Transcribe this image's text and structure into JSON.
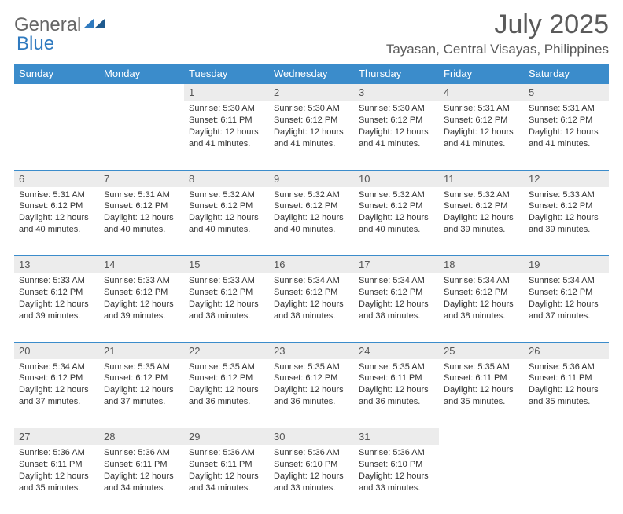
{
  "logo": {
    "text1": "General",
    "text2": "Blue"
  },
  "title": "July 2025",
  "subtitle": "Tayasan, Central Visayas, Philippines",
  "colors": {
    "header_bg": "#3b8ccb",
    "header_fg": "#ffffff",
    "daynum_bg": "#ececec",
    "border": "#3b8ccb",
    "text": "#333333",
    "title_fg": "#5a5a5a"
  },
  "weekdays": [
    "Sunday",
    "Monday",
    "Tuesday",
    "Wednesday",
    "Thursday",
    "Friday",
    "Saturday"
  ],
  "weeks": [
    [
      null,
      null,
      {
        "n": "1",
        "sr": "Sunrise: 5:30 AM",
        "ss": "Sunset: 6:11 PM",
        "dl": "Daylight: 12 hours and 41 minutes."
      },
      {
        "n": "2",
        "sr": "Sunrise: 5:30 AM",
        "ss": "Sunset: 6:12 PM",
        "dl": "Daylight: 12 hours and 41 minutes."
      },
      {
        "n": "3",
        "sr": "Sunrise: 5:30 AM",
        "ss": "Sunset: 6:12 PM",
        "dl": "Daylight: 12 hours and 41 minutes."
      },
      {
        "n": "4",
        "sr": "Sunrise: 5:31 AM",
        "ss": "Sunset: 6:12 PM",
        "dl": "Daylight: 12 hours and 41 minutes."
      },
      {
        "n": "5",
        "sr": "Sunrise: 5:31 AM",
        "ss": "Sunset: 6:12 PM",
        "dl": "Daylight: 12 hours and 41 minutes."
      }
    ],
    [
      {
        "n": "6",
        "sr": "Sunrise: 5:31 AM",
        "ss": "Sunset: 6:12 PM",
        "dl": "Daylight: 12 hours and 40 minutes."
      },
      {
        "n": "7",
        "sr": "Sunrise: 5:31 AM",
        "ss": "Sunset: 6:12 PM",
        "dl": "Daylight: 12 hours and 40 minutes."
      },
      {
        "n": "8",
        "sr": "Sunrise: 5:32 AM",
        "ss": "Sunset: 6:12 PM",
        "dl": "Daylight: 12 hours and 40 minutes."
      },
      {
        "n": "9",
        "sr": "Sunrise: 5:32 AM",
        "ss": "Sunset: 6:12 PM",
        "dl": "Daylight: 12 hours and 40 minutes."
      },
      {
        "n": "10",
        "sr": "Sunrise: 5:32 AM",
        "ss": "Sunset: 6:12 PM",
        "dl": "Daylight: 12 hours and 40 minutes."
      },
      {
        "n": "11",
        "sr": "Sunrise: 5:32 AM",
        "ss": "Sunset: 6:12 PM",
        "dl": "Daylight: 12 hours and 39 minutes."
      },
      {
        "n": "12",
        "sr": "Sunrise: 5:33 AM",
        "ss": "Sunset: 6:12 PM",
        "dl": "Daylight: 12 hours and 39 minutes."
      }
    ],
    [
      {
        "n": "13",
        "sr": "Sunrise: 5:33 AM",
        "ss": "Sunset: 6:12 PM",
        "dl": "Daylight: 12 hours and 39 minutes."
      },
      {
        "n": "14",
        "sr": "Sunrise: 5:33 AM",
        "ss": "Sunset: 6:12 PM",
        "dl": "Daylight: 12 hours and 39 minutes."
      },
      {
        "n": "15",
        "sr": "Sunrise: 5:33 AM",
        "ss": "Sunset: 6:12 PM",
        "dl": "Daylight: 12 hours and 38 minutes."
      },
      {
        "n": "16",
        "sr": "Sunrise: 5:34 AM",
        "ss": "Sunset: 6:12 PM",
        "dl": "Daylight: 12 hours and 38 minutes."
      },
      {
        "n": "17",
        "sr": "Sunrise: 5:34 AM",
        "ss": "Sunset: 6:12 PM",
        "dl": "Daylight: 12 hours and 38 minutes."
      },
      {
        "n": "18",
        "sr": "Sunrise: 5:34 AM",
        "ss": "Sunset: 6:12 PM",
        "dl": "Daylight: 12 hours and 38 minutes."
      },
      {
        "n": "19",
        "sr": "Sunrise: 5:34 AM",
        "ss": "Sunset: 6:12 PM",
        "dl": "Daylight: 12 hours and 37 minutes."
      }
    ],
    [
      {
        "n": "20",
        "sr": "Sunrise: 5:34 AM",
        "ss": "Sunset: 6:12 PM",
        "dl": "Daylight: 12 hours and 37 minutes."
      },
      {
        "n": "21",
        "sr": "Sunrise: 5:35 AM",
        "ss": "Sunset: 6:12 PM",
        "dl": "Daylight: 12 hours and 37 minutes."
      },
      {
        "n": "22",
        "sr": "Sunrise: 5:35 AM",
        "ss": "Sunset: 6:12 PM",
        "dl": "Daylight: 12 hours and 36 minutes."
      },
      {
        "n": "23",
        "sr": "Sunrise: 5:35 AM",
        "ss": "Sunset: 6:12 PM",
        "dl": "Daylight: 12 hours and 36 minutes."
      },
      {
        "n": "24",
        "sr": "Sunrise: 5:35 AM",
        "ss": "Sunset: 6:11 PM",
        "dl": "Daylight: 12 hours and 36 minutes."
      },
      {
        "n": "25",
        "sr": "Sunrise: 5:35 AM",
        "ss": "Sunset: 6:11 PM",
        "dl": "Daylight: 12 hours and 35 minutes."
      },
      {
        "n": "26",
        "sr": "Sunrise: 5:36 AM",
        "ss": "Sunset: 6:11 PM",
        "dl": "Daylight: 12 hours and 35 minutes."
      }
    ],
    [
      {
        "n": "27",
        "sr": "Sunrise: 5:36 AM",
        "ss": "Sunset: 6:11 PM",
        "dl": "Daylight: 12 hours and 35 minutes."
      },
      {
        "n": "28",
        "sr": "Sunrise: 5:36 AM",
        "ss": "Sunset: 6:11 PM",
        "dl": "Daylight: 12 hours and 34 minutes."
      },
      {
        "n": "29",
        "sr": "Sunrise: 5:36 AM",
        "ss": "Sunset: 6:11 PM",
        "dl": "Daylight: 12 hours and 34 minutes."
      },
      {
        "n": "30",
        "sr": "Sunrise: 5:36 AM",
        "ss": "Sunset: 6:10 PM",
        "dl": "Daylight: 12 hours and 33 minutes."
      },
      {
        "n": "31",
        "sr": "Sunrise: 5:36 AM",
        "ss": "Sunset: 6:10 PM",
        "dl": "Daylight: 12 hours and 33 minutes."
      },
      null,
      null
    ]
  ]
}
